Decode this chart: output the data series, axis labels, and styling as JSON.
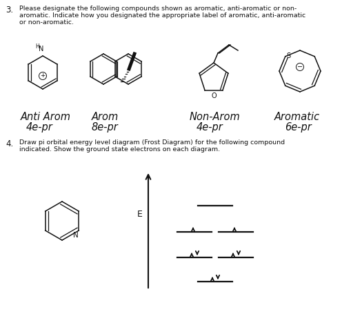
{
  "bg_color": "#ffffff",
  "fig_width": 5.25,
  "fig_height": 4.68,
  "dpi": 100,
  "text_color": "#111111",
  "q3_number": "3.",
  "q3_text_line1": "Please designate the following compounds shown as aromatic, anti-aromatic or non-",
  "q3_text_line2": "aromatic. Indicate how you designated the appropriate label of aromatic, anti-aromatic",
  "q3_text_line3": "or non-aromatic.",
  "q4_number": "4.",
  "q4_text_line1": "Draw pi orbital energy level diagram (Frost Diagram) for the following compound",
  "q4_text_line2": "indicated. Show the ground state electrons on each diagram.",
  "label1_line1": "Anti Arom",
  "label1_line2": "4e-pr",
  "label2_line1": "Arom",
  "label2_line2": "8e-pr",
  "label3_line1": "Non-Arom",
  "label3_line2": "4e-pr",
  "label4_line1": "Aromatic",
  "label4_line2": "6e-pr",
  "body_fs": 6.8,
  "num_fs": 8.5,
  "hw_fs": 10.5,
  "struct_lw": 1.1
}
